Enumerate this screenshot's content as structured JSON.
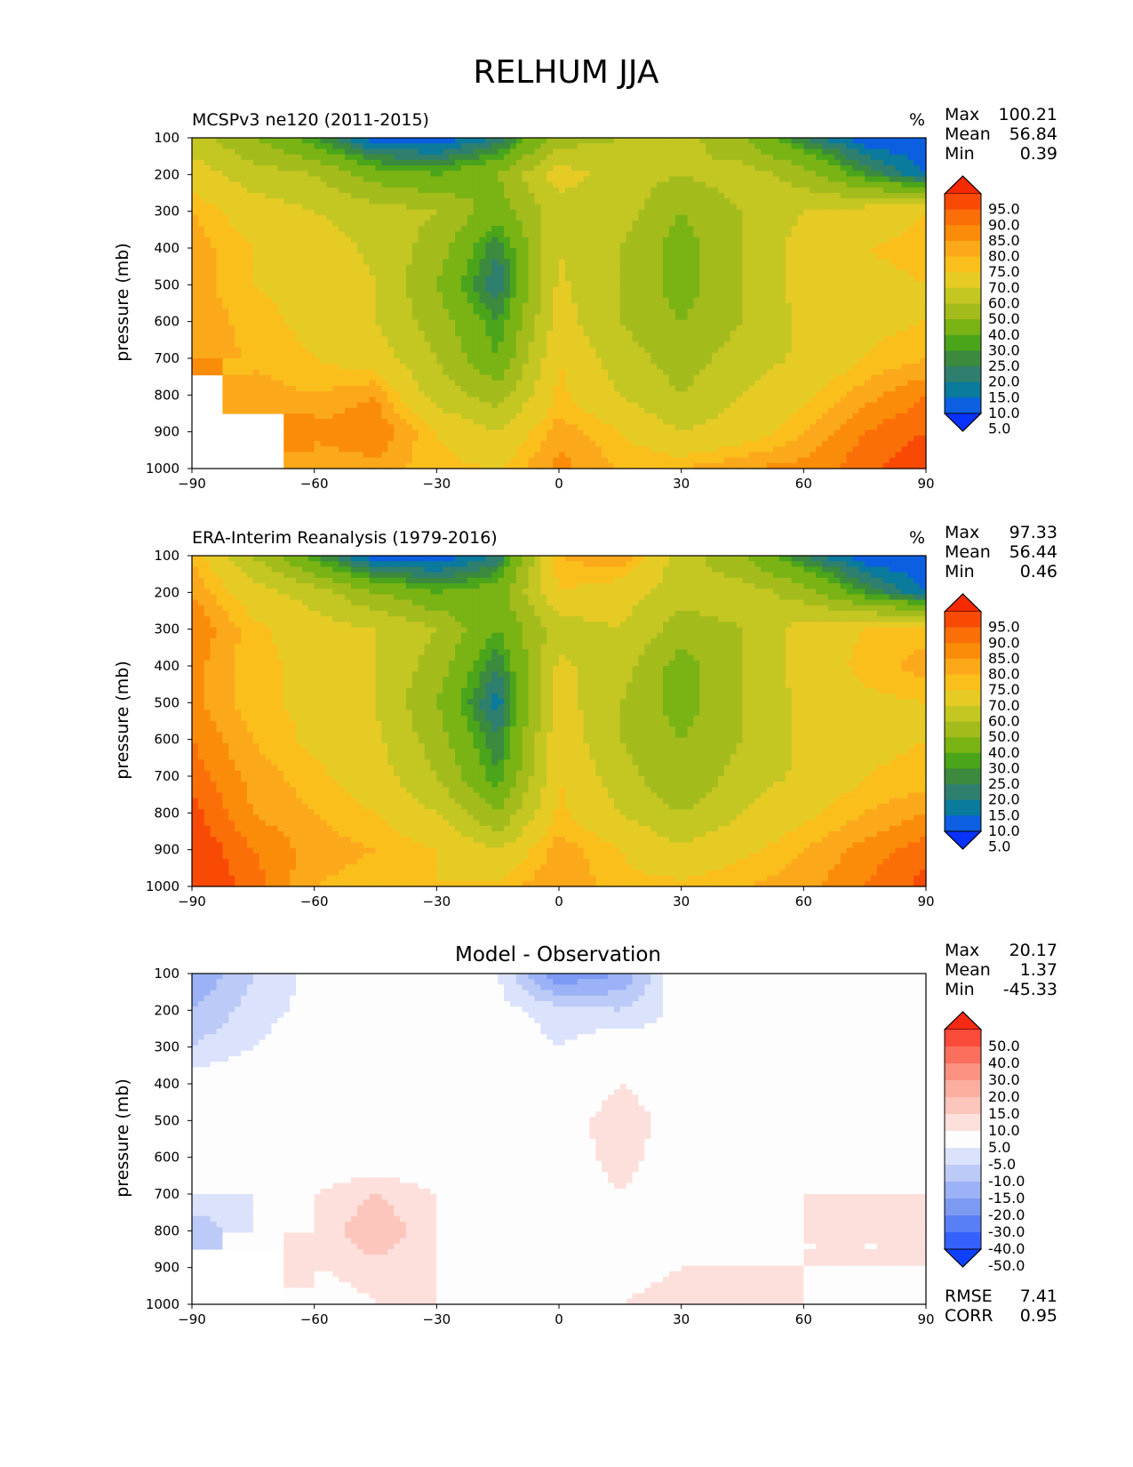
{
  "suptitle": "RELHUM JJA",
  "charts": [
    {
      "title_left": "MCSPv3 ne120 (2011-2015)",
      "title_right": "%",
      "ylabel": "pressure (mb)",
      "stats": {
        "max_label": "Max",
        "max": "100.21",
        "mean_label": "Mean",
        "mean": "56.84",
        "min_label": "Min",
        "min": "0.39"
      },
      "colorbar_labels": [
        "95.0",
        "90.0",
        "85.0",
        "80.0",
        "75.0",
        "70.0",
        "60.0",
        "50.0",
        "40.0",
        "30.0",
        "25.0",
        "20.0",
        "15.0",
        "10.0",
        "5.0"
      ]
    },
    {
      "title_left": "ERA-Interim Reanalysis (1979-2016)",
      "title_right": "%",
      "ylabel": "pressure (mb)",
      "stats": {
        "max_label": "Max",
        "max": "97.33",
        "mean_label": "Mean",
        "mean": "56.44",
        "min_label": "Min",
        "min": "0.46"
      },
      "colorbar_labels": [
        "95.0",
        "90.0",
        "85.0",
        "80.0",
        "75.0",
        "70.0",
        "60.0",
        "50.0",
        "40.0",
        "30.0",
        "25.0",
        "20.0",
        "15.0",
        "10.0",
        "5.0"
      ]
    },
    {
      "title_center": "Model - Observation",
      "ylabel": "pressure (mb)",
      "stats": {
        "max_label": "Max",
        "max": "20.17",
        "mean_label": "Mean",
        "mean": "1.37",
        "min_label": "Min",
        "min": "-45.33"
      },
      "extra_stats": {
        "rmse_label": "RMSE",
        "rmse": "7.41",
        "corr_label": "CORR",
        "corr": "0.95"
      },
      "colorbar_labels": [
        "50.0",
        "40.0",
        "30.0",
        "20.0",
        "15.0",
        "10.0",
        "5.0",
        "-5.0",
        "-10.0",
        "-15.0",
        "-20.0",
        "-30.0",
        "-40.0",
        "-50.0"
      ]
    }
  ],
  "chart_data": [
    {
      "type": "heatmap",
      "title": "MCSPv3 ne120 (2011-2015)",
      "ylabel": "pressure (mb)",
      "xlim": [
        -90,
        90
      ],
      "ylim": [
        1000,
        100
      ],
      "x_ticks": [
        "−90",
        "−60",
        "−30",
        "0",
        "30",
        "60",
        "90"
      ],
      "y_ticks": [
        "100",
        "200",
        "300",
        "400",
        "500",
        "600",
        "700",
        "800",
        "900",
        "1000"
      ],
      "x": [
        -90,
        -75,
        -60,
        -45,
        -30,
        -15,
        0,
        15,
        30,
        45,
        60,
        75,
        90
      ],
      "y": [
        100,
        200,
        300,
        400,
        500,
        600,
        700,
        800,
        900,
        1000
      ],
      "z": [
        [
          55,
          40,
          25,
          5,
          5,
          15,
          45,
          50,
          55,
          40,
          20,
          5,
          5
        ],
        [
          65,
          55,
          50,
          35,
          30,
          40,
          65,
          55,
          50,
          55,
          45,
          25,
          10
        ],
        [
          75,
          65,
          60,
          55,
          50,
          35,
          55,
          55,
          40,
          50,
          60,
          65,
          70
        ],
        [
          78,
          70,
          65,
          58,
          45,
          20,
          60,
          50,
          35,
          50,
          65,
          70,
          72
        ],
        [
          78,
          70,
          68,
          60,
          40,
          15,
          62,
          50,
          35,
          50,
          65,
          68,
          70
        ],
        [
          80,
          72,
          68,
          60,
          45,
          25,
          65,
          50,
          40,
          50,
          62,
          68,
          70
        ],
        [
          80,
          74,
          70,
          65,
          50,
          30,
          70,
          55,
          45,
          55,
          62,
          70,
          75
        ],
        [
          null,
          78,
          75,
          80,
          55,
          45,
          72,
          60,
          50,
          60,
          68,
          78,
          85
        ],
        [
          null,
          null,
          82,
          85,
          70,
          60,
          78,
          70,
          60,
          65,
          75,
          85,
          90
        ],
        [
          null,
          null,
          75,
          78,
          72,
          70,
          82,
          75,
          75,
          80,
          82,
          88,
          95
        ]
      ],
      "colorbar": [
        "95.0",
        "90.0",
        "85.0",
        "80.0",
        "75.0",
        "70.0",
        "60.0",
        "50.0",
        "40.0",
        "30.0",
        "25.0",
        "20.0",
        "15.0",
        "10.0",
        "5.0"
      ]
    },
    {
      "type": "heatmap",
      "title": "ERA-Interim Reanalysis (1979-2016)",
      "ylabel": "pressure (mb)",
      "xlim": [
        -90,
        90
      ],
      "ylim": [
        1000,
        100
      ],
      "x_ticks": [
        "−90",
        "−60",
        "−30",
        "0",
        "30",
        "60",
        "90"
      ],
      "y_ticks": [
        "100",
        "200",
        "300",
        "400",
        "500",
        "600",
        "700",
        "800",
        "900",
        "1000"
      ],
      "x": [
        -90,
        -75,
        -60,
        -45,
        -30,
        -15,
        0,
        15,
        30,
        45,
        60,
        75,
        90
      ],
      "y": [
        100,
        200,
        300,
        400,
        500,
        600,
        700,
        800,
        900,
        1000
      ],
      "z": [
        [
          75,
          50,
          25,
          5,
          5,
          15,
          75,
          80,
          55,
          40,
          20,
          5,
          5
        ],
        [
          80,
          65,
          55,
          40,
          30,
          35,
          70,
          65,
          55,
          55,
          45,
          25,
          10
        ],
        [
          85,
          72,
          65,
          60,
          50,
          30,
          55,
          60,
          45,
          50,
          65,
          70,
          72
        ],
        [
          82,
          72,
          68,
          60,
          45,
          20,
          62,
          55,
          35,
          50,
          65,
          72,
          78
        ],
        [
          82,
          72,
          68,
          60,
          40,
          12,
          65,
          50,
          35,
          50,
          62,
          68,
          70
        ],
        [
          85,
          75,
          68,
          62,
          45,
          20,
          68,
          50,
          40,
          50,
          62,
          68,
          70
        ],
        [
          88,
          78,
          72,
          65,
          50,
          25,
          70,
          55,
          40,
          55,
          62,
          70,
          72
        ],
        [
          92,
          80,
          75,
          70,
          60,
          40,
          72,
          60,
          50,
          60,
          68,
          75,
          80
        ],
        [
          95,
          85,
          78,
          75,
          70,
          60,
          78,
          70,
          62,
          68,
          75,
          82,
          88
        ],
        [
          95,
          88,
          75,
          72,
          70,
          72,
          80,
          72,
          72,
          75,
          78,
          85,
          92
        ]
      ],
      "colorbar": [
        "95.0",
        "90.0",
        "85.0",
        "80.0",
        "75.0",
        "70.0",
        "60.0",
        "50.0",
        "40.0",
        "30.0",
        "25.0",
        "20.0",
        "15.0",
        "10.0",
        "5.0"
      ]
    },
    {
      "type": "heatmap",
      "title": "Model - Observation",
      "ylabel": "pressure (mb)",
      "xlim": [
        -90,
        90
      ],
      "ylim": [
        1000,
        100
      ],
      "x_ticks": [
        "−90",
        "−60",
        "−30",
        "0",
        "30",
        "60",
        "90"
      ],
      "y_ticks": [
        "100",
        "200",
        "300",
        "400",
        "500",
        "600",
        "700",
        "800",
        "900",
        "1000"
      ],
      "x": [
        -90,
        -75,
        -60,
        -45,
        -30,
        -15,
        0,
        15,
        30,
        45,
        60,
        75,
        90
      ],
      "y": [
        100,
        200,
        300,
        400,
        500,
        600,
        700,
        800,
        900,
        1000
      ],
      "z": [
        [
          -20,
          -10,
          -3,
          0,
          0,
          -5,
          -25,
          -20,
          0,
          0,
          0,
          0,
          0
        ],
        [
          -15,
          -8,
          -3,
          -1,
          0,
          -3,
          -8,
          -10,
          -3,
          0,
          0,
          0,
          2
        ],
        [
          -10,
          -5,
          0,
          0,
          0,
          0,
          -5,
          0,
          -5,
          0,
          0,
          0,
          2
        ],
        [
          -2,
          0,
          0,
          0,
          0,
          0,
          -5,
          5,
          0,
          0,
          0,
          0,
          0
        ],
        [
          0,
          0,
          0,
          0,
          0,
          0,
          0,
          10,
          0,
          0,
          0,
          0,
          0
        ],
        [
          0,
          0,
          0,
          0,
          0,
          0,
          0,
          8,
          0,
          0,
          0,
          0,
          0
        ],
        [
          -5,
          -5,
          5,
          10,
          5,
          0,
          0,
          5,
          0,
          0,
          5,
          5,
          5
        ],
        [
          -15,
          -5,
          5,
          15,
          5,
          0,
          0,
          0,
          0,
          0,
          5,
          5,
          5
        ],
        [
          null,
          null,
          5,
          8,
          5,
          0,
          0,
          0,
          5,
          5,
          5,
          5,
          5
        ],
        [
          null,
          null,
          0,
          5,
          5,
          0,
          0,
          5,
          10,
          8,
          5,
          0,
          0
        ]
      ],
      "colorbar": [
        "50.0",
        "40.0",
        "30.0",
        "20.0",
        "15.0",
        "10.0",
        "5.0",
        "-5.0",
        "-10.0",
        "-15.0",
        "-20.0",
        "-30.0",
        "-40.0",
        "-50.0"
      ],
      "rmse": 7.41,
      "corr": 0.95
    }
  ]
}
